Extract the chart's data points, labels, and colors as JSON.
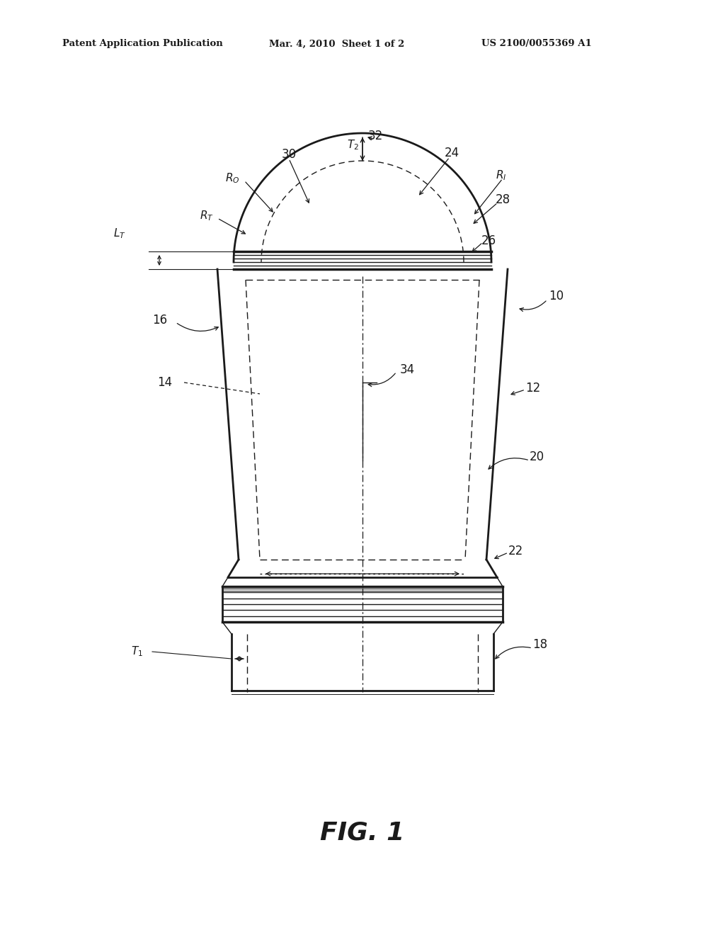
{
  "bg_color": "#ffffff",
  "lc": "#1a1a1a",
  "header_left": "Patent Application Publication",
  "header_mid": "Mar. 4, 2010  Sheet 1 of 2",
  "header_right": "US 2100/0055369 A1",
  "fig_label": "FIG. 1",
  "lw_main": 2.0,
  "lw_thin": 1.0,
  "lw_thick": 2.5,
  "lw_hair": 0.7
}
